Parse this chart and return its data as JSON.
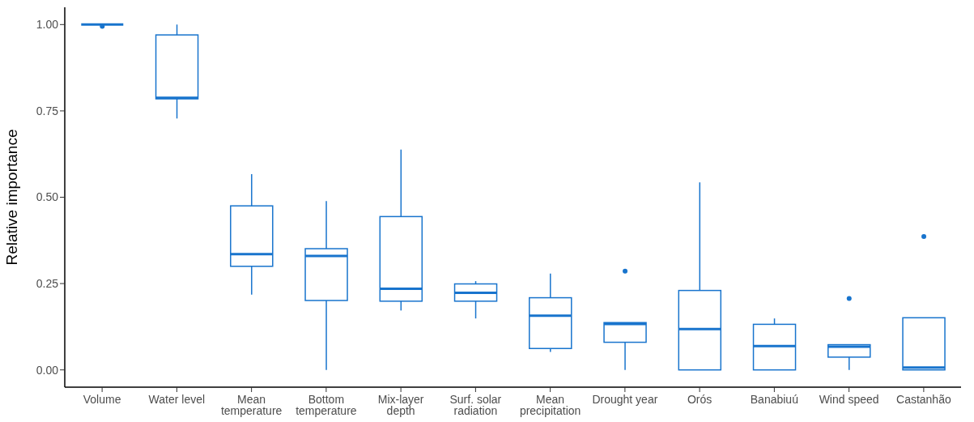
{
  "chart_data": {
    "type": "box",
    "ylabel": "Relative importance",
    "categories": [
      "Volume",
      "Water level",
      "Mean temperature",
      "Bottom temperature",
      "Mix-layer depth",
      "Surf. solar radiation",
      "Mean precipitation",
      "Drought year",
      "Orós",
      "Banabiuú",
      "Wind speed",
      "Castanhão"
    ],
    "color": "#1874cd",
    "boxes": [
      {
        "low": 1,
        "q1": 1,
        "median": 1,
        "q3": 1,
        "high": 1,
        "outliers": [
          0.995
        ]
      },
      {
        "low": 0.728,
        "q1": 0.785,
        "median": 0.788,
        "q3": 0.97,
        "high": 1
      },
      {
        "low": 0.218,
        "q1": 0.3,
        "median": 0.335,
        "q3": 0.475,
        "high": 0.567
      },
      {
        "low": 0,
        "q1": 0.201,
        "median": 0.33,
        "q3": 0.351,
        "high": 0.489
      },
      {
        "low": 0.172,
        "q1": 0.199,
        "median": 0.235,
        "q3": 0.444,
        "high": 0.638
      },
      {
        "low": 0.149,
        "q1": 0.199,
        "median": 0.223,
        "q3": 0.249,
        "high": 0.257
      },
      {
        "low": 0.052,
        "q1": 0.062,
        "median": 0.157,
        "q3": 0.209,
        "high": 0.279
      },
      {
        "low": 0,
        "q1": 0.08,
        "median": 0.133,
        "q3": 0.137,
        "high": 0.137,
        "outliers": [
          0.286
        ]
      },
      {
        "low": 0,
        "q1": 0,
        "median": 0.118,
        "q3": 0.23,
        "high": 0.543
      },
      {
        "low": 0,
        "q1": 0,
        "median": 0.069,
        "q3": 0.132,
        "high": 0.149
      },
      {
        "low": 0,
        "q1": 0.037,
        "median": 0.067,
        "q3": 0.073,
        "high": 0.073,
        "outliers": [
          0.207
        ]
      },
      {
        "low": 0,
        "q1": 0,
        "median": 0.007,
        "q3": 0.151,
        "high": 0.151,
        "outliers": [
          0.386
        ]
      }
    ],
    "ylim": [
      -0.05,
      1.05
    ],
    "yticks": [
      {
        "value": 0,
        "label": "0.00"
      },
      {
        "value": 0.25,
        "label": "0.25"
      },
      {
        "value": 0.5,
        "label": "0.50"
      },
      {
        "value": 0.75,
        "label": "0.75"
      },
      {
        "value": 1,
        "label": "1.00"
      }
    ],
    "grid": false,
    "legend": false
  }
}
